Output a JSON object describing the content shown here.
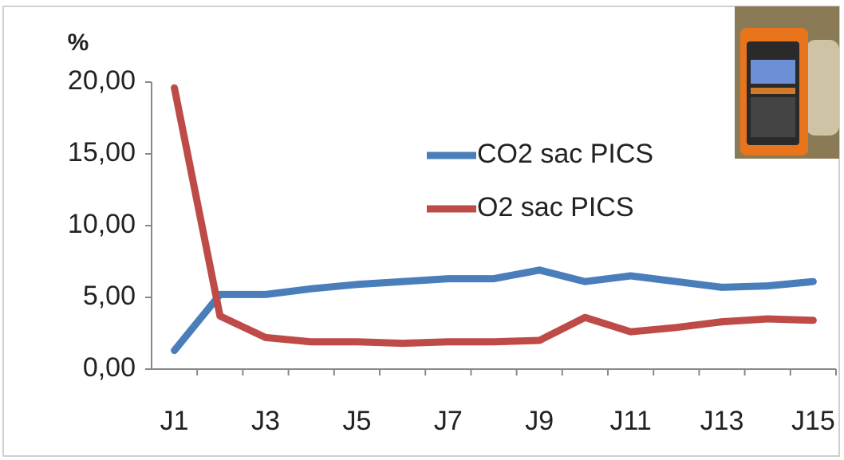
{
  "chart_data": {
    "type": "line",
    "y_label": "%",
    "categories": [
      "J1",
      null,
      "J3",
      null,
      "J5",
      null,
      "J7",
      null,
      "J9",
      null,
      "J11",
      null,
      "J13",
      null,
      "J15"
    ],
    "series": [
      {
        "name": "CO2 sac PICS",
        "color": "#4a7ebb",
        "values": [
          1.3,
          5.2,
          5.2,
          5.6,
          5.9,
          6.1,
          6.3,
          6.3,
          6.9,
          6.1,
          6.5,
          6.1,
          5.7,
          5.8,
          6.1
        ]
      },
      {
        "name": "O2 sac PICS",
        "color": "#be4b48",
        "values": [
          19.6,
          3.7,
          2.2,
          1.9,
          1.9,
          1.8,
          1.9,
          1.9,
          2.0,
          3.6,
          2.6,
          2.9,
          3.3,
          3.5,
          3.4
        ]
      }
    ],
    "ylim": [
      0,
      20
    ],
    "yticks": [
      {
        "value": 0,
        "label": "0,00"
      },
      {
        "value": 5,
        "label": "5,00"
      },
      {
        "value": 10,
        "label": "10,00"
      },
      {
        "value": 15,
        "label": "15,00"
      },
      {
        "value": 20,
        "label": "20,00"
      }
    ]
  }
}
